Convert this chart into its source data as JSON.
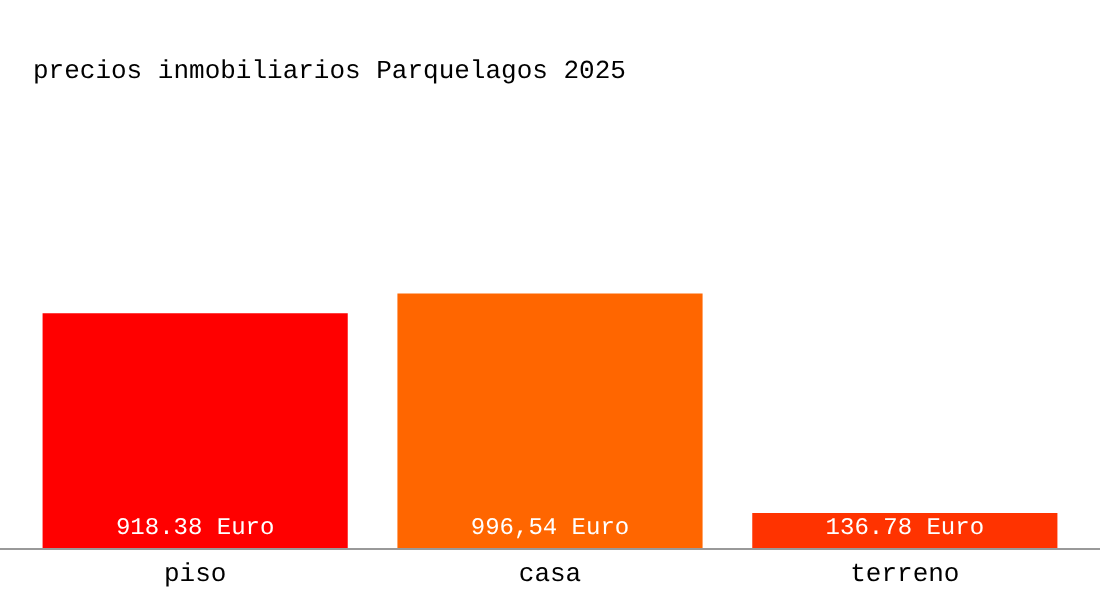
{
  "chart_data": {
    "type": "bar",
    "title": "precios inmobiliarios Parquelagos 2025",
    "categories": [
      "piso",
      "casa",
      "terreno"
    ],
    "values": [
      918.38,
      996.54,
      136.78
    ],
    "colors": [
      "#ff0000",
      "#ff6600",
      "#ff3300"
    ],
    "value_labels": [
      "918.38 Euro",
      "996,54 Euro",
      "136.78 Euro"
    ],
    "legend": false
  }
}
